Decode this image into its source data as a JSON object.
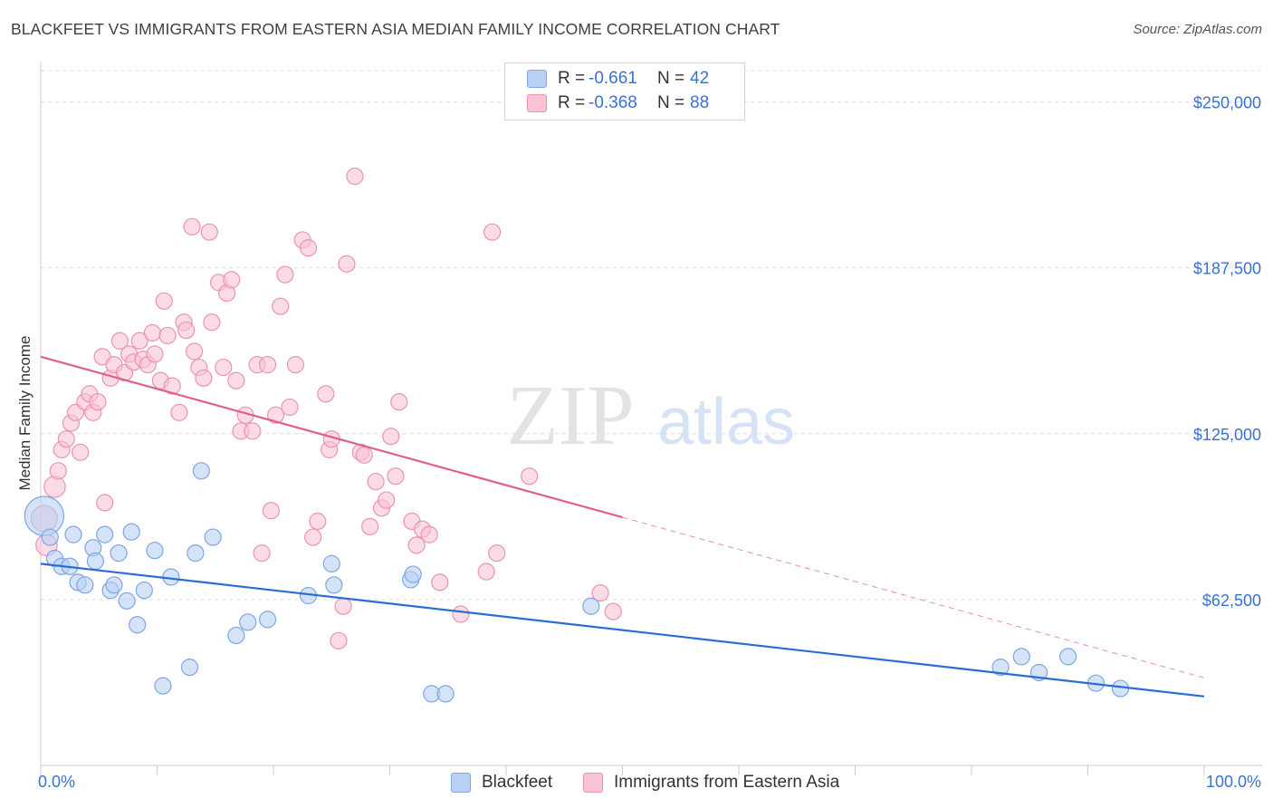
{
  "title": "BLACKFEET VS IMMIGRANTS FROM EASTERN ASIA MEDIAN FAMILY INCOME CORRELATION CHART",
  "source": "Source: ZipAtlas.com",
  "watermark": {
    "zip": "ZIP",
    "atlas": "atlas"
  },
  "legend": {
    "row1": {
      "r_label": "R =",
      "r_value": "-0.661",
      "n_label": "N =",
      "n_value": "42"
    },
    "row2": {
      "r_label": "R =",
      "r_value": "-0.368",
      "n_label": "N =",
      "n_value": "88"
    }
  },
  "bottom_legend": {
    "series1": "Blackfeet",
    "series2": "Immigrants from Eastern Asia"
  },
  "colors": {
    "blue_fill": "#b9d1f5",
    "blue_stroke": "#7ea6e3",
    "blue_line": "#2a6ed4",
    "pink_fill": "#f8c3d4",
    "pink_stroke": "#eb94b0",
    "pink_line": "#e0608a",
    "axis_label": "#3a72d0"
  },
  "chart_data": {
    "type": "scatter",
    "title": "BLACKFEET VS IMMIGRANTS FROM EASTERN ASIA MEDIAN FAMILY INCOME CORRELATION CHART",
    "xlabel": "",
    "ylabel": "Median Family Income",
    "xlim": [
      0,
      100
    ],
    "ylim": [
      0,
      262500
    ],
    "x_tick_labels": [
      "0.0%",
      "100.0%"
    ],
    "y_ticks": [
      62500,
      125000,
      187500,
      250000
    ],
    "y_tick_labels": [
      "$62,500",
      "$125,000",
      "$187,500",
      "$250,000"
    ],
    "series": [
      {
        "name": "Blackfeet",
        "color": "#7ea6e3",
        "trend": {
          "x0": 0,
          "y0": 76000,
          "x1": 100,
          "y1": 26000,
          "dash_from": null
        },
        "points": [
          [
            0.3,
            94000,
            2.4
          ],
          [
            0.8,
            86000,
            1
          ],
          [
            1.2,
            78000,
            1
          ],
          [
            1.8,
            75000,
            1
          ],
          [
            2.5,
            75000,
            1
          ],
          [
            2.8,
            87000,
            1
          ],
          [
            3.2,
            69000,
            1
          ],
          [
            3.8,
            68000,
            1
          ],
          [
            4.5,
            82000,
            1
          ],
          [
            4.7,
            77000,
            1
          ],
          [
            5.5,
            87000,
            1
          ],
          [
            6,
            66000,
            1
          ],
          [
            6.3,
            68000,
            1
          ],
          [
            6.7,
            80000,
            1
          ],
          [
            7.4,
            62000,
            1
          ],
          [
            7.8,
            88000,
            1
          ],
          [
            8.3,
            53000,
            1
          ],
          [
            8.9,
            66000,
            1
          ],
          [
            9.8,
            81000,
            1
          ],
          [
            10.5,
            30000,
            1
          ],
          [
            11.2,
            71000,
            1
          ],
          [
            12.8,
            37000,
            1
          ],
          [
            13.3,
            80000,
            1
          ],
          [
            13.8,
            111000,
            1
          ],
          [
            14.8,
            86000,
            1
          ],
          [
            16.8,
            49000,
            1
          ],
          [
            17.8,
            54000,
            1
          ],
          [
            19.5,
            55000,
            1
          ],
          [
            23,
            64000,
            1
          ],
          [
            25,
            76000,
            1
          ],
          [
            25.2,
            68000,
            1
          ],
          [
            31.8,
            70000,
            1
          ],
          [
            32,
            72000,
            1
          ],
          [
            33.6,
            27000,
            1
          ],
          [
            34.8,
            27000,
            1
          ],
          [
            47.3,
            60000,
            1
          ],
          [
            82.5,
            37000,
            1
          ],
          [
            84.3,
            41000,
            1
          ],
          [
            85.8,
            35000,
            1
          ],
          [
            88.3,
            41000,
            1
          ],
          [
            90.7,
            31000,
            1
          ],
          [
            92.8,
            29000,
            1
          ]
        ]
      },
      {
        "name": "Immigrants from Eastern Asia",
        "color": "#eb94b0",
        "trend": {
          "x0": 0,
          "y0": 154000,
          "x1": 100,
          "y1": 33000,
          "dash_from": 50
        },
        "points": [
          [
            0.3,
            93000,
            1.6
          ],
          [
            0.5,
            83000,
            1.3
          ],
          [
            1.2,
            105000,
            1.3
          ],
          [
            1.5,
            111000,
            1
          ],
          [
            1.8,
            119000,
            1
          ],
          [
            2.2,
            123000,
            1
          ],
          [
            2.6,
            129000,
            1
          ],
          [
            3,
            133000,
            1
          ],
          [
            3.4,
            118000,
            1
          ],
          [
            3.8,
            137000,
            1
          ],
          [
            4.2,
            140000,
            1
          ],
          [
            4.5,
            133000,
            1
          ],
          [
            4.9,
            137000,
            1
          ],
          [
            5.5,
            99000,
            1
          ],
          [
            5.3,
            154000,
            1
          ],
          [
            6,
            146000,
            1
          ],
          [
            6.3,
            151000,
            1
          ],
          [
            6.8,
            160000,
            1
          ],
          [
            7.2,
            148000,
            1
          ],
          [
            7.6,
            155000,
            1
          ],
          [
            8,
            152000,
            1
          ],
          [
            8.5,
            160000,
            1
          ],
          [
            8.8,
            153000,
            1
          ],
          [
            9.2,
            151000,
            1
          ],
          [
            9.6,
            163000,
            1
          ],
          [
            9.8,
            155000,
            1
          ],
          [
            10.3,
            145000,
            1
          ],
          [
            10.6,
            175000,
            1
          ],
          [
            10.9,
            162000,
            1
          ],
          [
            11.3,
            143000,
            1
          ],
          [
            11.9,
            133000,
            1
          ],
          [
            12.3,
            167000,
            1
          ],
          [
            12.5,
            164000,
            1
          ],
          [
            13,
            203000,
            1
          ],
          [
            13.2,
            156000,
            1
          ],
          [
            13.6,
            150000,
            1
          ],
          [
            14,
            146000,
            1
          ],
          [
            14.5,
            201000,
            1
          ],
          [
            14.7,
            167000,
            1
          ],
          [
            15.3,
            182000,
            1
          ],
          [
            15.7,
            150000,
            1
          ],
          [
            16,
            178000,
            1
          ],
          [
            16.4,
            183000,
            1
          ],
          [
            16.8,
            145000,
            1
          ],
          [
            17.2,
            126000,
            1
          ],
          [
            17.6,
            132000,
            1
          ],
          [
            18.2,
            126000,
            1
          ],
          [
            18.6,
            151000,
            1
          ],
          [
            19,
            80000,
            1
          ],
          [
            19.5,
            151000,
            1
          ],
          [
            19.8,
            96000,
            1
          ],
          [
            20.2,
            132000,
            1
          ],
          [
            20.6,
            173000,
            1
          ],
          [
            21,
            185000,
            1
          ],
          [
            21.4,
            135000,
            1
          ],
          [
            21.9,
            151000,
            1
          ],
          [
            22.5,
            198000,
            1
          ],
          [
            23,
            195000,
            1
          ],
          [
            23.4,
            86000,
            1
          ],
          [
            23.8,
            92000,
            1
          ],
          [
            24.5,
            140000,
            1
          ],
          [
            24.8,
            119000,
            1
          ],
          [
            25,
            123000,
            1
          ],
          [
            25.6,
            47000,
            1
          ],
          [
            26,
            60000,
            1
          ],
          [
            26.3,
            189000,
            1
          ],
          [
            27,
            222000,
            1
          ],
          [
            27.5,
            118000,
            1
          ],
          [
            27.8,
            117000,
            1
          ],
          [
            28.3,
            90000,
            1
          ],
          [
            28.8,
            107000,
            1
          ],
          [
            29.3,
            97000,
            1
          ],
          [
            29.7,
            100000,
            1
          ],
          [
            30.1,
            124000,
            1
          ],
          [
            30.5,
            109000,
            1
          ],
          [
            30.8,
            137000,
            1
          ],
          [
            31.9,
            92000,
            1
          ],
          [
            32.3,
            83000,
            1
          ],
          [
            32.8,
            89000,
            1
          ],
          [
            33.4,
            87000,
            1
          ],
          [
            34.3,
            69000,
            1
          ],
          [
            36.1,
            57000,
            1
          ],
          [
            38.3,
            73000,
            1
          ],
          [
            38.8,
            201000,
            1
          ],
          [
            39.2,
            80000,
            1
          ],
          [
            42,
            109000,
            1
          ],
          [
            48.1,
            65000,
            1
          ],
          [
            49.2,
            58000,
            1
          ]
        ]
      }
    ]
  }
}
